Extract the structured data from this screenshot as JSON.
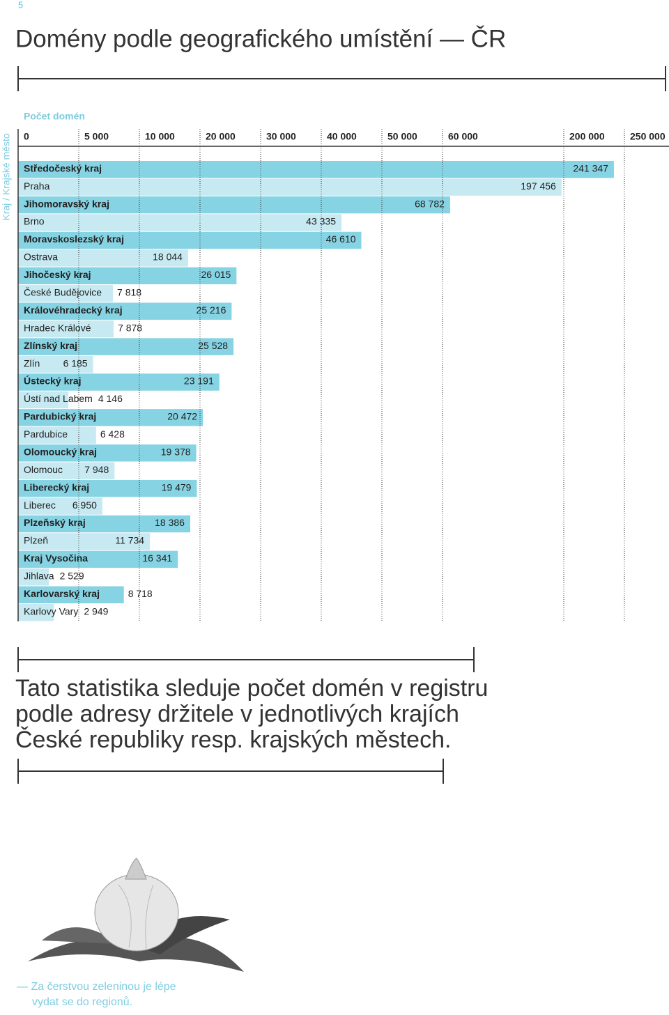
{
  "page_number": "5",
  "title": "Domény podle geografického umístění — ČR",
  "chart_data": {
    "type": "bar",
    "orientation": "horizontal",
    "axis_title": "Počet domén",
    "y_axis_title": "Kraj / Krajské město",
    "categories": [
      "Středočeský kraj",
      "Praha",
      "Jihomoravský kraj",
      "Brno",
      "Moravskoslezský kraj",
      "Ostrava",
      "Jihočeský kraj",
      "České Budějovice",
      "Královéhradecký kraj",
      "Hradec Králové",
      "Zlínský kraj",
      "Zlín",
      "Ústecký kraj",
      "Ústí nad Labem",
      "Pardubický kraj",
      "Pardubice",
      "Olomoucký kraj",
      "Olomouc",
      "Liberecký kraj",
      "Liberec",
      "Plzeňský kraj",
      "Plzeň",
      "Kraj Vysočina",
      "Jihlava",
      "Karlovarský kraj",
      "Karlovy Vary"
    ],
    "values": [
      241347,
      197456,
      68782,
      43335,
      46610,
      18044,
      26015,
      7818,
      25216,
      7878,
      25528,
      6185,
      23191,
      4146,
      20472,
      6428,
      19378,
      7948,
      19479,
      6950,
      18386,
      11734,
      16341,
      2529,
      8718,
      2949
    ],
    "value_labels": [
      "241 347",
      "197 456",
      "68 782",
      "43 335",
      "46 610",
      "18 044",
      "26 015",
      "7 818",
      "25 216",
      "7 878",
      "25 528",
      "6 185",
      "23 191",
      "4 146",
      "20 472",
      "6 428",
      "19 378",
      "7 948",
      "19 479",
      "6 950",
      "18 386",
      "11 734",
      "16 341",
      "2 529",
      "8 718",
      "2 949"
    ],
    "colors": [
      "#86d3e3",
      "#c7eaf2",
      "#86d3e3",
      "#c7eaf2",
      "#86d3e3",
      "#c7eaf2",
      "#86d3e3",
      "#c7eaf2",
      "#86d3e3",
      "#c7eaf2",
      "#86d3e3",
      "#c7eaf2",
      "#86d3e3",
      "#c7eaf2",
      "#86d3e3",
      "#c7eaf2",
      "#86d3e3",
      "#c7eaf2",
      "#86d3e3",
      "#c7eaf2",
      "#86d3e3",
      "#c7eaf2",
      "#86d3e3",
      "#c7eaf2",
      "#86d3e3",
      "#c7eaf2"
    ],
    "xlim": [
      0,
      250000
    ],
    "xticks": [
      0,
      {
        "value": 5000,
        "label": "5 000"
      },
      {
        "value": 10000,
        "label": "10 000"
      },
      {
        "value": 20000,
        "label": "20 000"
      },
      {
        "value": 30000,
        "label": "30 000"
      },
      {
        "value": 40000,
        "label": "40 000"
      },
      {
        "value": 50000,
        "label": "50 000"
      },
      {
        "value": 60000,
        "label": "60 000"
      },
      {
        "value": 200000,
        "label": "200 000"
      },
      {
        "value": 250000,
        "label": "250 000"
      }
    ],
    "grid": true
  },
  "description": [
    "Tato statistika sleduje počet domén v registru",
    "podle adresy držitele v jednotlivých krajích",
    "České republiky resp. krajských městech."
  ],
  "image_caption": [
    "— Za čerstvou zeleninou je lépe",
    "vydat se do regionů."
  ]
}
